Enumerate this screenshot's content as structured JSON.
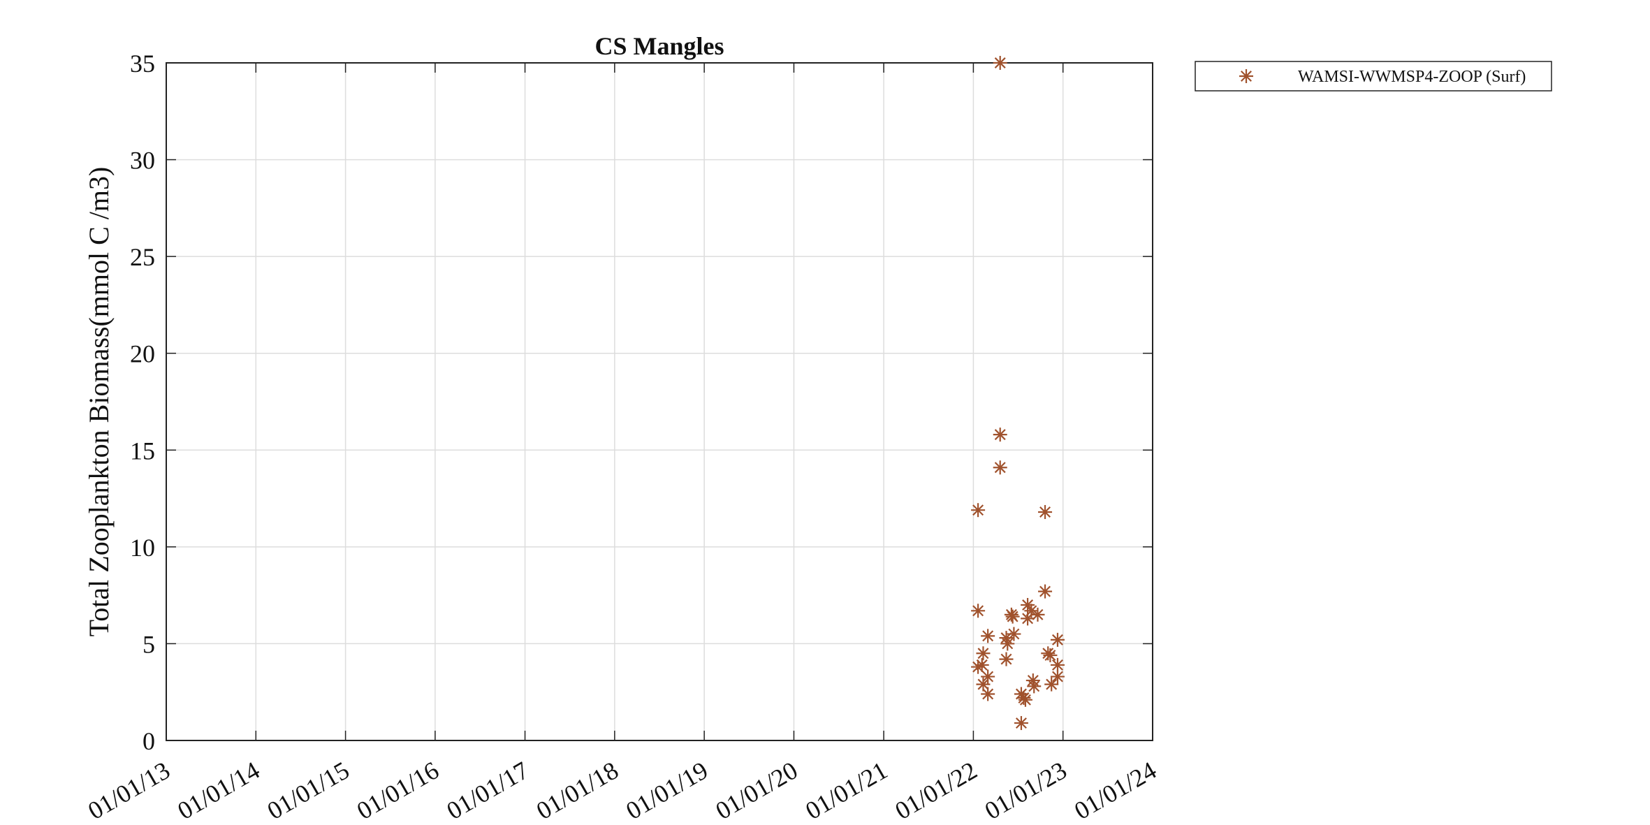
{
  "chart_data": {
    "type": "scatter",
    "title": "CS Mangles",
    "xlabel": "",
    "ylabel": "Total Zooplankton Biomass(mmol C /m3)",
    "x_ticks": [
      "01/01/13",
      "01/01/14",
      "01/01/15",
      "01/01/16",
      "01/01/17",
      "01/01/18",
      "01/01/19",
      "01/01/20",
      "01/01/21",
      "01/01/22",
      "01/01/23",
      "01/01/24"
    ],
    "xlim": [
      "2013-01-01",
      "2024-01-01"
    ],
    "ylim": [
      0,
      35
    ],
    "y_ticks": [
      "0",
      "5",
      "10",
      "15",
      "20",
      "25",
      "30",
      "35"
    ],
    "grid": true,
    "legend_position": "outside top-right",
    "series": [
      {
        "name": "WAMSI-WWMSP4-ZOOP (Surf)",
        "marker": "asterisk",
        "color": "#a0522d",
        "points": [
          {
            "x": "2022-01-20",
            "y": 11.9
          },
          {
            "x": "2022-01-20",
            "y": 6.7
          },
          {
            "x": "2022-01-20",
            "y": 3.8
          },
          {
            "x": "2022-02-05",
            "y": 3.9
          },
          {
            "x": "2022-02-10",
            "y": 4.5
          },
          {
            "x": "2022-02-10",
            "y": 2.9
          },
          {
            "x": "2022-03-01",
            "y": 5.4
          },
          {
            "x": "2022-03-01",
            "y": 3.3
          },
          {
            "x": "2022-03-01",
            "y": 2.4
          },
          {
            "x": "2022-04-20",
            "y": 35.0
          },
          {
            "x": "2022-04-20",
            "y": 15.8
          },
          {
            "x": "2022-04-20",
            "y": 14.1
          },
          {
            "x": "2022-05-15",
            "y": 5.3
          },
          {
            "x": "2022-05-15",
            "y": 4.2
          },
          {
            "x": "2022-05-20",
            "y": 5.0
          },
          {
            "x": "2022-06-05",
            "y": 6.5
          },
          {
            "x": "2022-06-10",
            "y": 6.4
          },
          {
            "x": "2022-06-15",
            "y": 5.5
          },
          {
            "x": "2022-07-15",
            "y": 2.4
          },
          {
            "x": "2022-07-15",
            "y": 0.9
          },
          {
            "x": "2022-07-25",
            "y": 2.2
          },
          {
            "x": "2022-08-01",
            "y": 2.1
          },
          {
            "x": "2022-08-10",
            "y": 7.0
          },
          {
            "x": "2022-08-10",
            "y": 6.3
          },
          {
            "x": "2022-08-25",
            "y": 6.7
          },
          {
            "x": "2022-09-01",
            "y": 3.1
          },
          {
            "x": "2022-09-05",
            "y": 2.8
          },
          {
            "x": "2022-09-20",
            "y": 6.5
          },
          {
            "x": "2022-10-20",
            "y": 11.8
          },
          {
            "x": "2022-10-20",
            "y": 7.7
          },
          {
            "x": "2022-11-01",
            "y": 4.5
          },
          {
            "x": "2022-11-10",
            "y": 4.4
          },
          {
            "x": "2022-11-15",
            "y": 2.9
          },
          {
            "x": "2022-12-10",
            "y": 5.2
          },
          {
            "x": "2022-12-10",
            "y": 3.9
          },
          {
            "x": "2022-12-10",
            "y": 3.3
          }
        ]
      }
    ]
  }
}
